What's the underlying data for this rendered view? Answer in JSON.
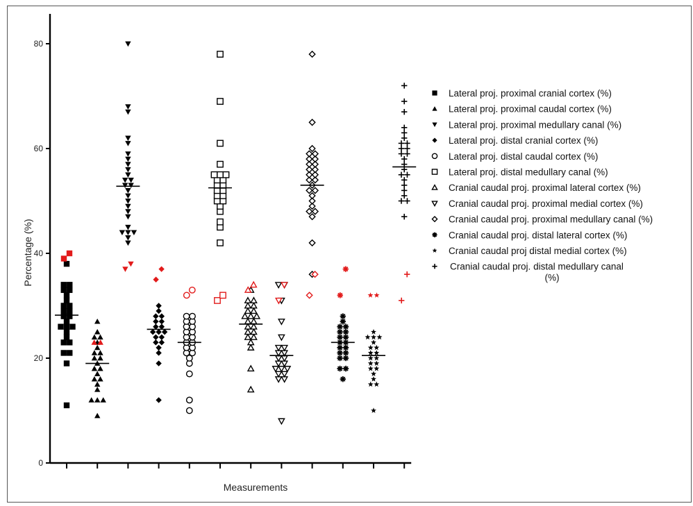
{
  "chart_data": {
    "type": "scatter",
    "xlabel": "Measurements",
    "ylabel": "Percentage (%)",
    "ylim": [
      0,
      85
    ],
    "yticks": [
      0,
      20,
      40,
      60,
      80
    ],
    "grid": false,
    "legend_position": "right",
    "colors": {
      "normal": "#000000",
      "outlier": "#e21b1b"
    },
    "series": [
      {
        "name": "Lateral proj. proximal cranial cortex (%)",
        "symbol": "square-filled",
        "mean": 28.2,
        "values": [
          11,
          19,
          21,
          21,
          23,
          23,
          24,
          25,
          26,
          26,
          26,
          27,
          28,
          28,
          29,
          29,
          30,
          30,
          31,
          32,
          33,
          33,
          34,
          34,
          38
        ],
        "outliers": [
          39,
          40
        ]
      },
      {
        "name": "Lateral proj. proximal caudal cortex (%)",
        "symbol": "triangle-up-filled",
        "mean": 19,
        "values": [
          9,
          12,
          12,
          12,
          14,
          15,
          16,
          16,
          17,
          18,
          18,
          19,
          20,
          20,
          21,
          21,
          22,
          23,
          24,
          24,
          25,
          27
        ],
        "outliers": [
          23,
          23
        ]
      },
      {
        "name": "Lateral proj. proximal medullary canal (%)",
        "symbol": "triangle-down-filled",
        "mean": 52.8,
        "values": [
          42,
          43,
          44,
          44,
          44,
          45,
          47,
          48,
          49,
          50,
          51,
          52,
          53,
          53,
          54,
          54,
          55,
          56,
          57,
          58,
          59,
          61,
          62,
          67,
          68,
          80
        ],
        "outliers": [
          37,
          38
        ]
      },
      {
        "name": "Lateral proj. distal cranial cortex (%)",
        "symbol": "diamond-filled",
        "mean": 25.5,
        "values": [
          12,
          19,
          21,
          22,
          23,
          23,
          24,
          24,
          25,
          25,
          25,
          26,
          26,
          27,
          27,
          28,
          28,
          29,
          30
        ],
        "outliers": [
          35,
          37
        ]
      },
      {
        "name": "Lateral proj. distal caudal cortex (%)",
        "symbol": "circle-open",
        "mean": 23,
        "values": [
          10,
          12,
          17,
          19,
          20,
          21,
          21,
          22,
          22,
          23,
          23,
          24,
          24,
          25,
          25,
          26,
          26,
          27,
          27,
          28,
          28
        ],
        "outliers": [
          32,
          33
        ]
      },
      {
        "name": "Lateral proj. distal medullary canal (%)",
        "symbol": "square-open",
        "mean": 52.5,
        "values": [
          42,
          45,
          46,
          48,
          49,
          50,
          50,
          51,
          51,
          52,
          52,
          53,
          53,
          54,
          54,
          55,
          55,
          55,
          57,
          61,
          69,
          78
        ],
        "outliers": [
          31,
          32
        ]
      },
      {
        "name": "Cranial caudal proj. proximal lateral cortex (%)",
        "symbol": "triangle-up-open",
        "mean": 26.5,
        "values": [
          14,
          18,
          22,
          23,
          24,
          24,
          25,
          25,
          26,
          26,
          27,
          27,
          28,
          28,
          28,
          29,
          29,
          30,
          30,
          31,
          31,
          33
        ],
        "outliers": [
          33,
          34
        ]
      },
      {
        "name": "Cranial caudal proj. proximal medial cortex (%)",
        "symbol": "triangle-down-open",
        "mean": 20.5,
        "values": [
          8,
          16,
          16,
          17,
          17,
          18,
          18,
          18,
          19,
          19,
          20,
          20,
          21,
          21,
          22,
          22,
          24,
          27,
          31,
          34,
          34
        ],
        "outliers": [
          31,
          34
        ]
      },
      {
        "name": "Cranial caudal proj. proximal medullary canal (%)",
        "symbol": "diamond-open",
        "mean": 53,
        "values": [
          36,
          42,
          47,
          48,
          48,
          49,
          50,
          51,
          52,
          52,
          53,
          54,
          54,
          55,
          55,
          56,
          56,
          57,
          57,
          58,
          58,
          59,
          59,
          60,
          65,
          78
        ],
        "outliers": [
          32,
          36
        ]
      },
      {
        "name": "Cranial caudal proj. distal lateral cortex (%)",
        "symbol": "asterisk",
        "mean": 23,
        "values": [
          16,
          18,
          18,
          20,
          20,
          21,
          21,
          22,
          22,
          23,
          23,
          24,
          24,
          25,
          25,
          26,
          26,
          27,
          28
        ],
        "outliers": [
          32,
          37
        ]
      },
      {
        "name": "Cranial caudal proj distal medial cortex (%)",
        "symbol": "star",
        "mean": 20.5,
        "values": [
          10,
          15,
          15,
          16,
          17,
          18,
          18,
          19,
          19,
          20,
          20,
          21,
          21,
          22,
          22,
          23,
          24,
          24,
          24,
          25
        ],
        "outliers": [
          32,
          32
        ]
      },
      {
        "name": "Cranial caudal proj. distal medullary canal (%)",
        "symbol": "plus",
        "mean": 56.5,
        "values": [
          47,
          50,
          50,
          51,
          52,
          53,
          54,
          55,
          55,
          56,
          57,
          58,
          59,
          59,
          60,
          60,
          61,
          61,
          62,
          63,
          64,
          67,
          69,
          72
        ],
        "outliers": [
          31,
          36
        ]
      }
    ]
  }
}
